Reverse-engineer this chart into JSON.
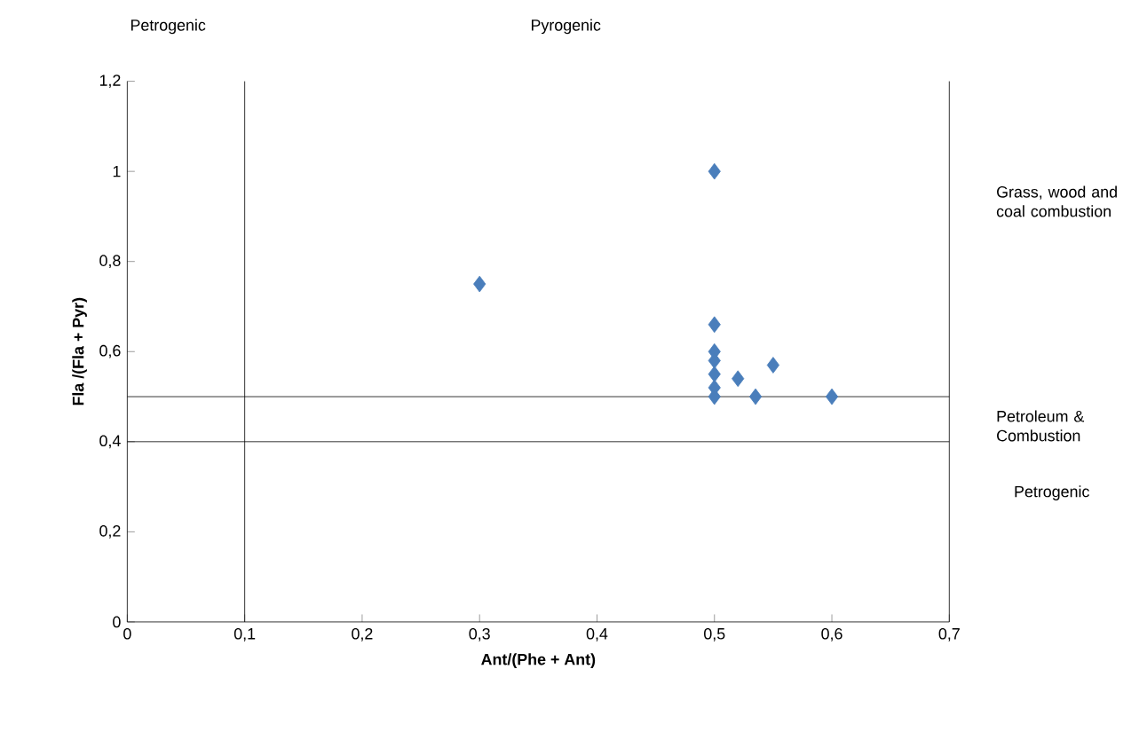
{
  "chart_data": {
    "type": "scatter",
    "xlabel": "Ant/(Phe + Ant)",
    "ylabel": "Fla /(Fla + Pyr)",
    "x": [
      0.3,
      0.5,
      0.5,
      0.5,
      0.5,
      0.5,
      0.5,
      0.5,
      0.52,
      0.535,
      0.55,
      0.6
    ],
    "values": [
      0.75,
      1.0,
      0.66,
      0.6,
      0.58,
      0.55,
      0.52,
      0.5,
      0.54,
      0.5,
      0.57,
      0.5
    ],
    "color": "#4a7ebb",
    "marker": "diamond",
    "grid": false,
    "xlim": [
      0,
      0.7
    ],
    "ylim": [
      0,
      1.2
    ],
    "xticks": [
      0,
      {
        "value": 0.1,
        "label": "0,1"
      },
      {
        "value": 0.2,
        "label": "0,2"
      },
      {
        "value": 0.3,
        "label": "0,3"
      },
      {
        "value": 0.4,
        "label": "0,4"
      },
      {
        "value": 0.5,
        "label": "0,5"
      },
      {
        "value": 0.6,
        "label": "0,6"
      },
      {
        "value": 0.7,
        "label": "0,7"
      }
    ],
    "yticks": [
      0,
      {
        "value": 0.2,
        "label": "0,2"
      },
      {
        "value": 0.4,
        "label": "0,4"
      },
      {
        "value": 0.6,
        "label": "0,6"
      },
      {
        "value": 0.8,
        "label": "0,8"
      },
      1,
      {
        "value": 1.2,
        "label": "1,2"
      }
    ],
    "ref_lines": [
      {
        "axis": "x",
        "value": 0.1,
        "color": "#000000"
      },
      {
        "axis": "y",
        "value": 0.4,
        "color": "#000000"
      },
      {
        "axis": "y",
        "value": 0.5,
        "color": "#000000"
      }
    ],
    "annotations": [
      "Petrogenic",
      "Pyrogenic",
      "Grass, wood and coal combustion",
      "Petroleum & Combustion",
      "Petrogenic"
    ]
  }
}
